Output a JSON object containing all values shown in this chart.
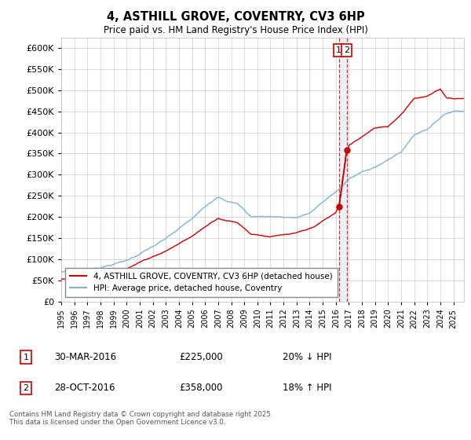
{
  "title": "4, ASTHILL GROVE, COVENTRY, CV3 6HP",
  "subtitle": "Price paid vs. HM Land Registry's House Price Index (HPI)",
  "ytick_values": [
    0,
    50000,
    100000,
    150000,
    200000,
    250000,
    300000,
    350000,
    400000,
    450000,
    500000,
    550000,
    600000
  ],
  "hpi_color": "#7fb3d3",
  "price_color": "#cc0000",
  "vline_color": "#cc0000",
  "vband_color": "#e8f0f8",
  "legend_label_price": "4, ASTHILL GROVE, COVENTRY, CV3 6HP (detached house)",
  "legend_label_hpi": "HPI: Average price, detached house, Coventry",
  "annotation1_date": "30-MAR-2016",
  "annotation1_price": "£225,000",
  "annotation1_pct": "20% ↓ HPI",
  "annotation2_date": "28-OCT-2016",
  "annotation2_price": "£358,000",
  "annotation2_pct": "18% ↑ HPI",
  "footnote": "Contains HM Land Registry data © Crown copyright and database right 2025.\nThis data is licensed under the Open Government Licence v3.0.",
  "sale1_year": 2016.24,
  "sale1_price": 225000,
  "sale2_year": 2016.83,
  "sale2_price": 358000,
  "background_color": "#ffffff",
  "grid_color": "#cccccc"
}
